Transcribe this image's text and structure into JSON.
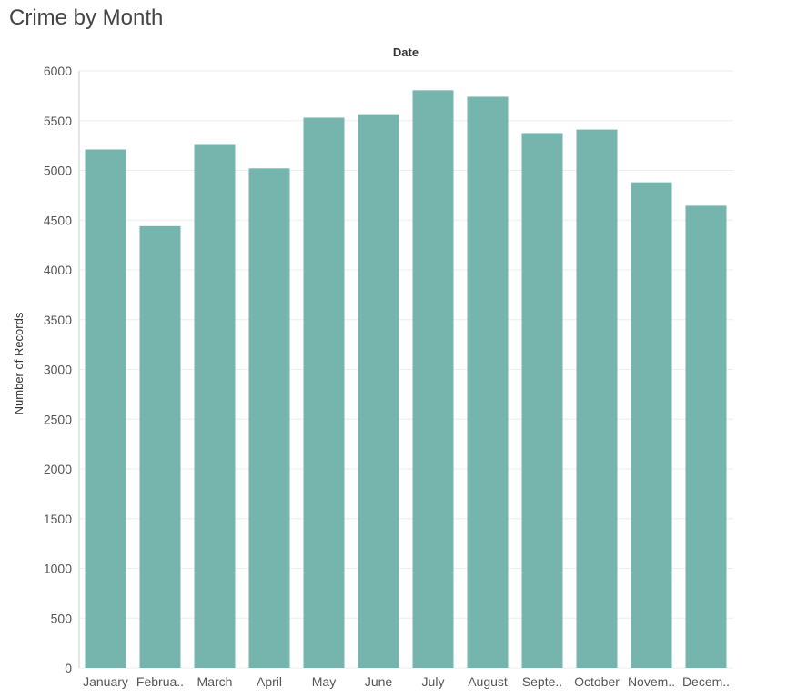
{
  "title": "Crime by Month",
  "colors": {
    "bar": "#76b5ae",
    "grid": "#eeeeee",
    "axis_line": "#cccccc"
  },
  "chart_data": {
    "type": "bar",
    "title": "Crime by Month",
    "column_header": "Date",
    "xlabel": "",
    "ylabel": "Number of Records",
    "categories": [
      "January",
      "Februa..",
      "March",
      "April",
      "May",
      "June",
      "July",
      "August",
      "Septe..",
      "October",
      "Novem..",
      "Decem.."
    ],
    "values": [
      5210,
      4440,
      5265,
      5020,
      5530,
      5565,
      5805,
      5740,
      5375,
      5410,
      4880,
      4645
    ],
    "ylim": [
      0,
      6000
    ],
    "yticks": [
      0,
      500,
      1000,
      1500,
      2000,
      2500,
      3000,
      3500,
      4000,
      4500,
      5000,
      5500,
      6000
    ],
    "grid": true,
    "legend": "none"
  }
}
